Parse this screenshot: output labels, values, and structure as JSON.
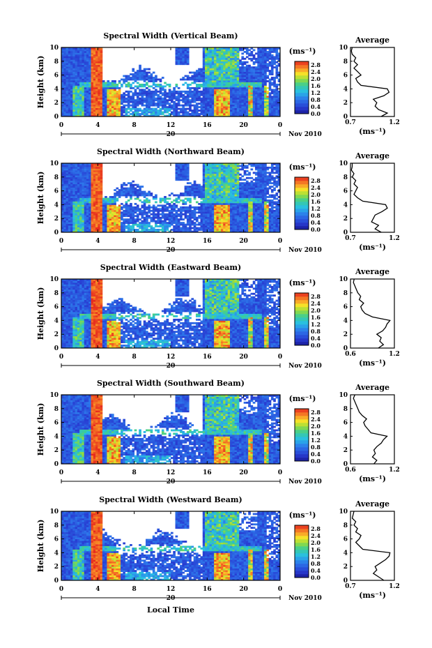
{
  "chart_data": {
    "type": "heatmap",
    "ylabel": "Height (km)",
    "xlabel": "Local Time",
    "date_label": "Nov 2010",
    "date_day": "20",
    "x_ticks": [
      "0",
      "4",
      "8",
      "12",
      "16",
      "20",
      "0"
    ],
    "y_ticks": [
      "0",
      "2",
      "4",
      "6",
      "8",
      "10"
    ],
    "colorbar": {
      "unit": "(ms⁻¹)",
      "ticks": [
        "0.0",
        "0.4",
        "0.8",
        "1.2",
        "1.6",
        "2.0",
        "2.4",
        "2.8"
      ],
      "range": [
        0.0,
        3.0
      ]
    },
    "avg_title": "Average",
    "avg_xlabel": "(ms⁻¹)",
    "panels": [
      {
        "title": "Spectral Width (Vertical Beam)",
        "avg_ticks": [
          "0.7",
          "1.2"
        ],
        "avg_range": [
          0.7,
          1.2
        ],
        "avg_height_km": [
          0,
          0.5,
          1,
          1.5,
          2,
          2.5,
          3,
          3.5,
          4,
          4.5,
          5,
          5.5,
          6,
          6.5,
          7,
          7.5,
          8,
          8.5,
          9,
          9.5,
          10
        ],
        "avg_value": [
          1.05,
          1.12,
          1.02,
          0.98,
          1.0,
          0.96,
          1.08,
          1.14,
          1.12,
          0.82,
          0.78,
          0.76,
          0.82,
          0.78,
          0.74,
          0.78,
          0.74,
          0.76,
          0.72,
          0.71,
          0.72
        ]
      },
      {
        "title": "Spectral Width (Northward Beam)",
        "avg_ticks": [
          "0.7",
          "1.2"
        ],
        "avg_range": [
          0.7,
          1.2
        ],
        "avg_height_km": [
          0,
          0.5,
          1,
          1.5,
          2,
          2.5,
          3,
          3.5,
          4,
          4.5,
          5,
          5.5,
          6,
          6.5,
          7,
          7.5,
          8,
          8.5,
          9,
          9.5,
          10
        ],
        "avg_value": [
          1.05,
          0.98,
          1.02,
          0.94,
          0.96,
          0.98,
          1.06,
          1.12,
          1.1,
          0.84,
          0.78,
          0.74,
          0.76,
          0.78,
          0.74,
          0.76,
          0.72,
          0.74,
          0.71,
          0.72,
          0.72
        ]
      },
      {
        "title": "Spectral Width (Eastward Beam)",
        "avg_ticks": [
          "0.6",
          "1.2"
        ],
        "avg_range": [
          0.6,
          1.2
        ],
        "avg_height_km": [
          0,
          0.5,
          1,
          1.5,
          2,
          2.5,
          3,
          3.5,
          4,
          4.5,
          5,
          5.5,
          6,
          6.5,
          7,
          7.5,
          8,
          8.5,
          9,
          9.5,
          10
        ],
        "avg_value": [
          0.98,
          1.05,
          1.0,
          1.02,
          0.96,
          1.04,
          1.08,
          1.1,
          1.14,
          0.9,
          0.8,
          0.76,
          0.74,
          0.78,
          0.72,
          0.74,
          0.7,
          0.68,
          0.66,
          0.64,
          0.65
        ]
      },
      {
        "title": "Spectral Width (Southward Beam)",
        "avg_ticks": [
          "0.6",
          "1.2"
        ],
        "avg_range": [
          0.6,
          1.2
        ],
        "avg_height_km": [
          0,
          0.5,
          1,
          1.5,
          2,
          2.5,
          3,
          3.5,
          4,
          4.5,
          5,
          5.5,
          6,
          6.5,
          7,
          7.5,
          8,
          8.5,
          9,
          9.5,
          10
        ],
        "avg_value": [
          0.92,
          0.96,
          0.9,
          0.94,
          0.92,
          0.96,
          1.02,
          1.05,
          1.1,
          0.88,
          0.84,
          0.8,
          0.78,
          0.82,
          0.76,
          0.72,
          0.7,
          0.68,
          0.66,
          0.64,
          0.66
        ]
      },
      {
        "title": "Spectral Width (Westward Beam)",
        "avg_ticks": [
          "0.7",
          "1.2"
        ],
        "avg_range": [
          0.7,
          1.2
        ],
        "avg_height_km": [
          0,
          0.5,
          1,
          1.5,
          2,
          2.5,
          3,
          3.5,
          4,
          4.5,
          5,
          5.5,
          6,
          6.5,
          7,
          7.5,
          8,
          8.5,
          9,
          9.5,
          10
        ],
        "avg_value": [
          1.08,
          1.02,
          0.96,
          1.0,
          0.98,
          1.04,
          1.1,
          1.14,
          1.15,
          0.84,
          0.8,
          0.76,
          0.8,
          0.82,
          0.76,
          0.78,
          0.74,
          0.76,
          0.72,
          0.73,
          0.74
        ]
      }
    ]
  }
}
